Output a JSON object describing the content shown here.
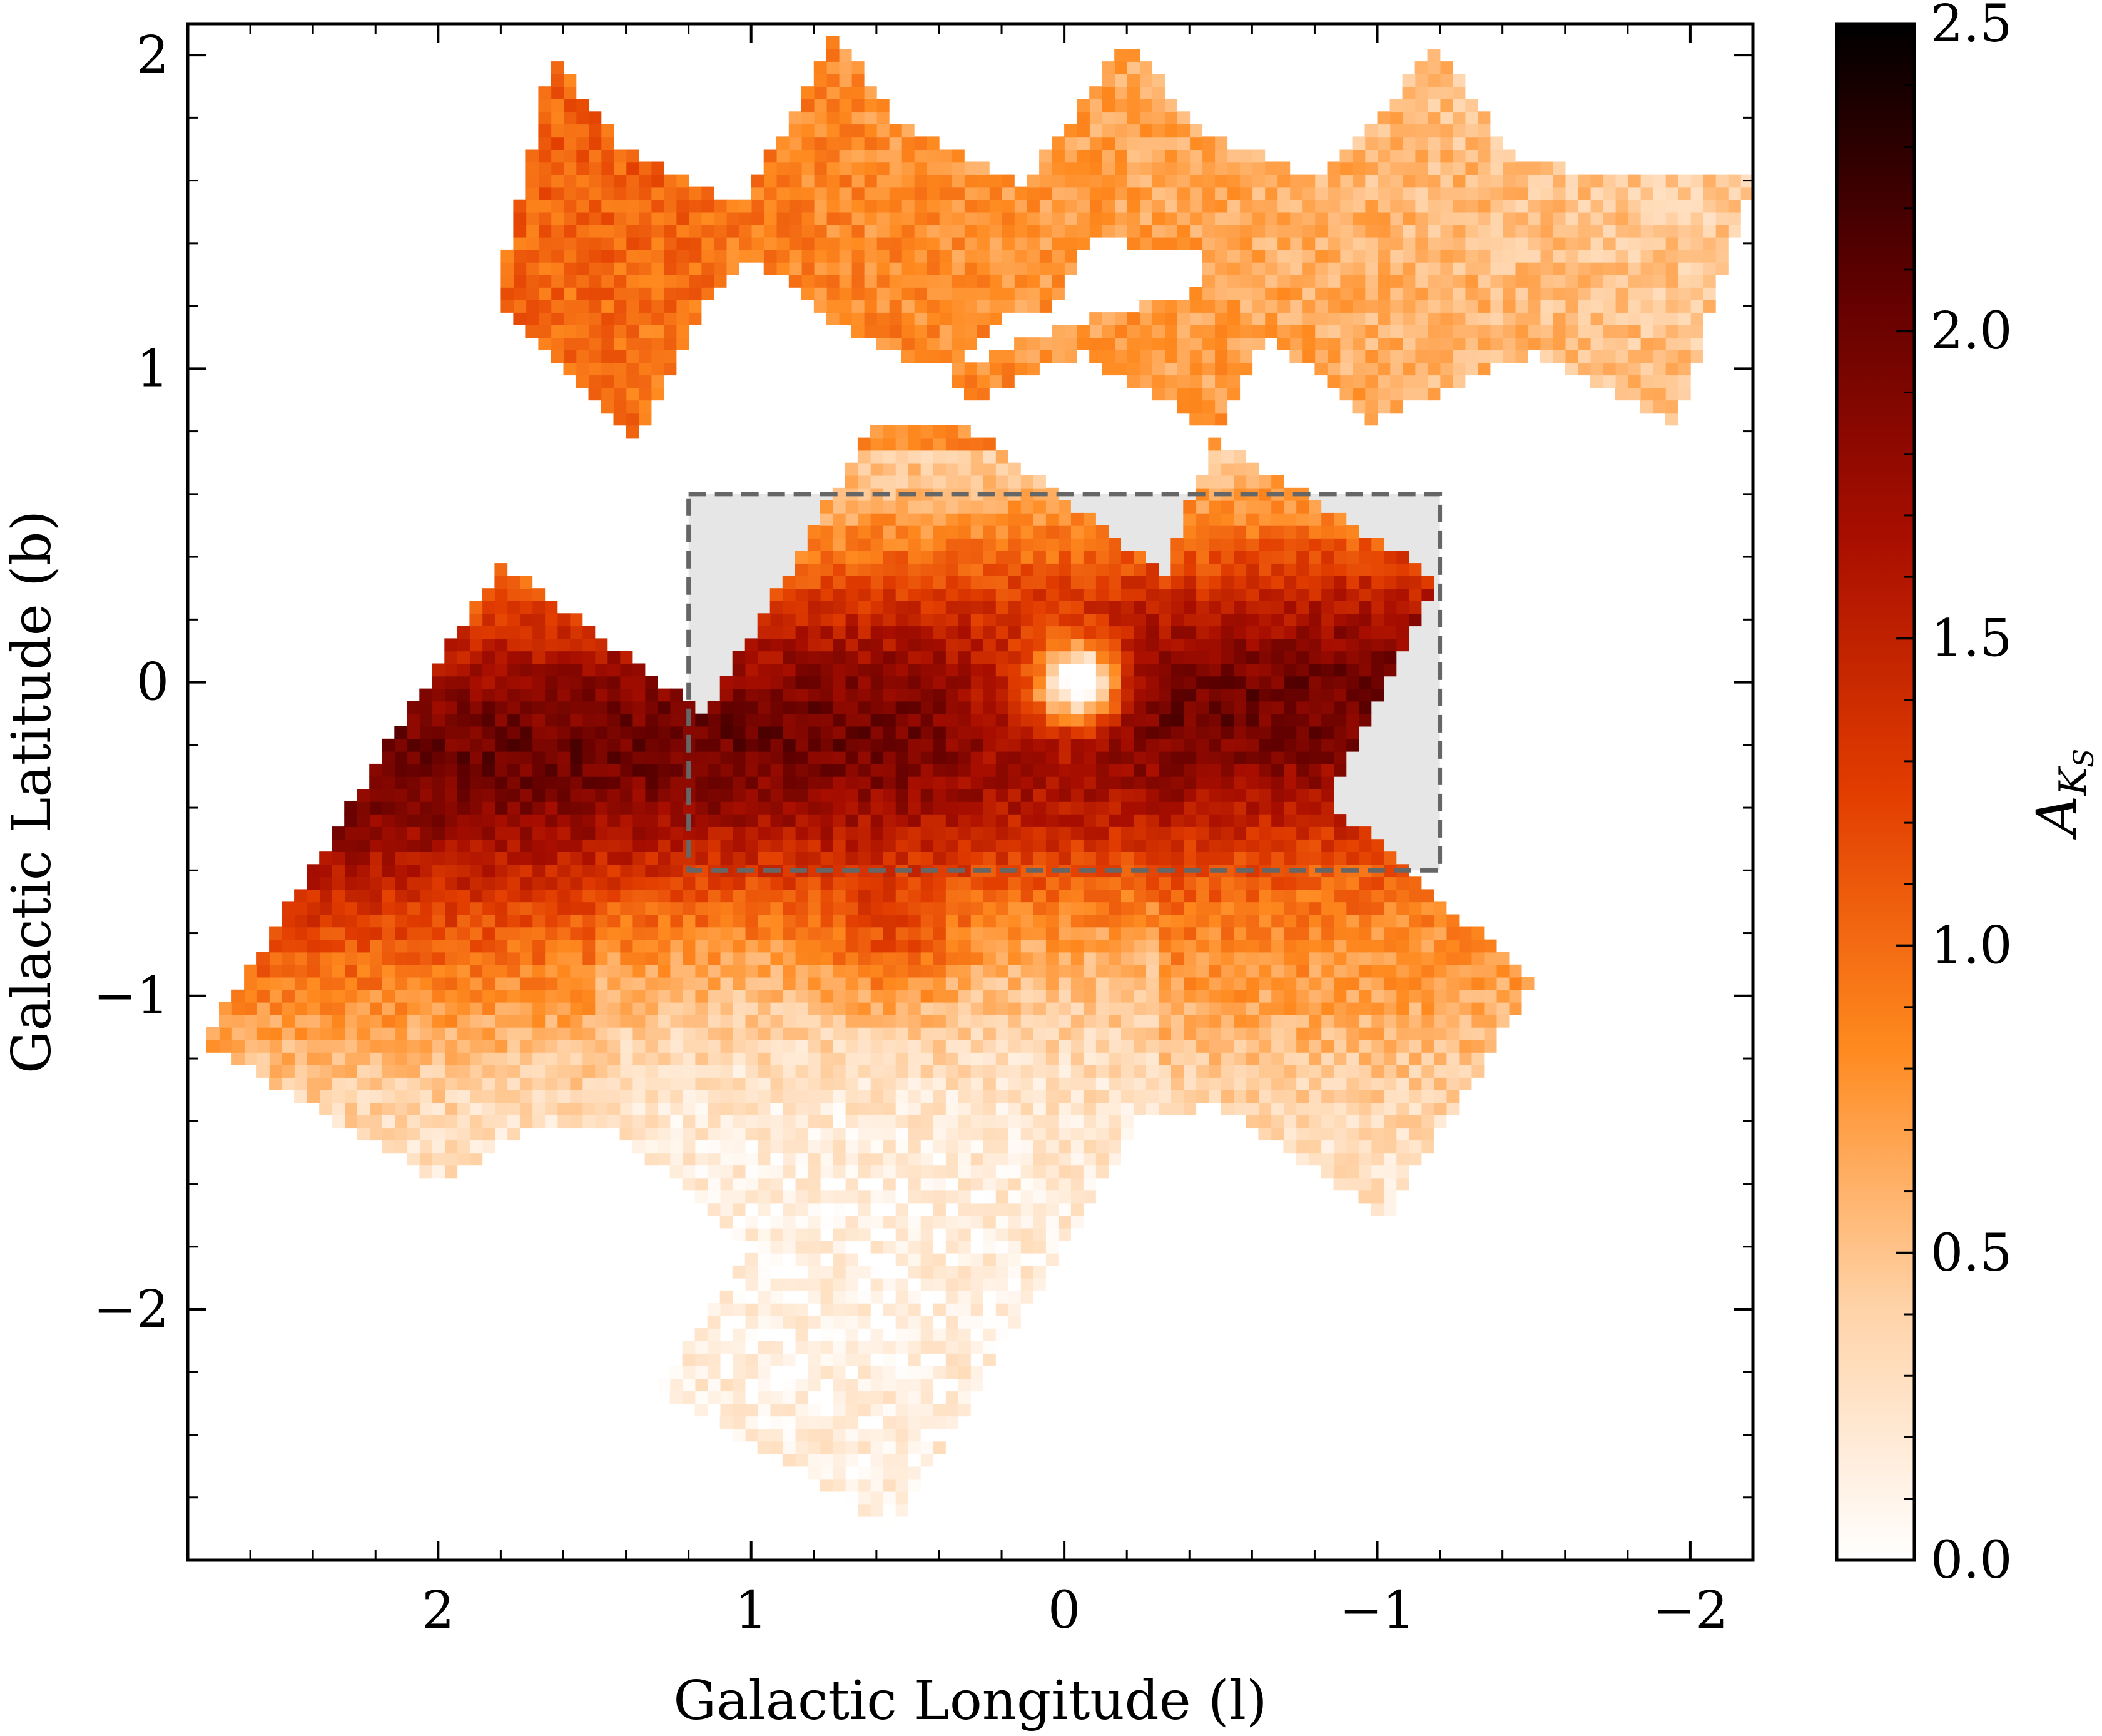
{
  "chart_data": {
    "type": "heatmap",
    "title": "",
    "xlabel": "Galactic Longitude (l)",
    "ylabel": "Galactic Latitude (b)",
    "xlim": [
      2.8,
      -2.2
    ],
    "ylim": [
      -2.8,
      2.1
    ],
    "x_ticks": [
      2,
      1,
      0,
      -1,
      -2
    ],
    "x_tick_labels": [
      "2",
      "1",
      "0",
      "−1",
      "−2"
    ],
    "y_ticks": [
      2,
      1,
      0,
      -1,
      -2
    ],
    "y_tick_labels": [
      "2",
      "1",
      "0",
      "−1",
      "−2"
    ],
    "colorbar": {
      "label": "A_KS",
      "label_display": "A",
      "label_subscript": "K",
      "label_subsubscript": "S",
      "range": [
        0.0,
        2.5
      ],
      "ticks": [
        0.0,
        0.5,
        1.0,
        1.5,
        2.0,
        2.5
      ],
      "tick_labels": [
        "0.0",
        "0.5",
        "1.0",
        "1.5",
        "2.0",
        "2.5"
      ],
      "colormap": "gist_heat_r",
      "colors": [
        "#ffffff",
        "#ffd2a6",
        "#ff8a1f",
        "#e23d00",
        "#a80e00",
        "#5e0000",
        "#000000"
      ]
    },
    "regions": [
      {
        "name": "northern tiles",
        "polygon": [
          [
            1.63,
            2.01
          ],
          [
            1.43,
            1.72
          ],
          [
            1.03,
            1.52
          ],
          [
            0.73,
            2.06
          ],
          [
            0.53,
            1.78
          ],
          [
            0.13,
            1.58
          ],
          [
            -0.2,
            2.06
          ],
          [
            -0.4,
            1.78
          ],
          [
            -0.8,
            1.6
          ],
          [
            -1.2,
            2.03
          ],
          [
            -1.45,
            1.65
          ],
          [
            -2.2,
            1.6
          ],
          [
            -1.95,
            0.82
          ],
          [
            -1.5,
            1.05
          ],
          [
            -0.97,
            0.83
          ],
          [
            -0.65,
            1.12
          ],
          [
            -0.48,
            0.8
          ],
          [
            -0.05,
            1.05
          ],
          [
            0.33,
            0.88
          ],
          [
            0.35,
            1.0
          ],
          [
            0.18,
            1.18
          ],
          [
            -0.05,
            1.15
          ],
          [
            -0.43,
            1.25
          ],
          [
            -0.43,
            1.36
          ],
          [
            -0.08,
            1.42
          ],
          [
            0.06,
            1.12
          ],
          [
            0.35,
            1.0
          ],
          [
            0.5,
            1.02
          ],
          [
            0.78,
            1.18
          ],
          [
            0.98,
            1.35
          ],
          [
            1.13,
            1.26
          ],
          [
            1.37,
            0.78
          ],
          [
            1.82,
            1.22
          ]
        ],
        "extinction_range": [
          0.2,
          1.1
        ]
      },
      {
        "name": "central tiles",
        "polygon": [
          [
            1.8,
            0.38
          ],
          [
            1.15,
            -0.1
          ],
          [
            0.62,
            0.8
          ],
          [
            0.32,
            0.82
          ],
          [
            -0.32,
            0.35
          ],
          [
            -0.48,
            0.78
          ],
          [
            -1.2,
            0.33
          ],
          [
            -0.85,
            -0.38
          ],
          [
            -1.5,
            -0.96
          ],
          [
            -1.03,
            -1.7
          ],
          [
            -0.5,
            -1.35
          ],
          [
            -0.25,
            -1.38
          ],
          [
            0.55,
            -2.7
          ],
          [
            1.3,
            -2.25
          ],
          [
            1.0,
            -1.8
          ],
          [
            1.15,
            -1.68
          ],
          [
            1.45,
            -1.4
          ],
          [
            1.7,
            -1.4
          ],
          [
            1.98,
            -1.6
          ],
          [
            2.75,
            -1.15
          ]
        ],
        "extinction_range": [
          0.0,
          2.5
        ]
      }
    ],
    "features": [
      {
        "label": "central low-extinction spot",
        "l": -0.05,
        "b": 0.0,
        "A_KS": 0.0
      },
      {
        "label": "high-extinction band",
        "b_range": [
          -0.9,
          0.4
        ],
        "A_KS_range": [
          1.4,
          2.3
        ]
      },
      {
        "label": "low-extinction southern region",
        "l_range": [
          0.2,
          1.3
        ],
        "b_range": [
          -2.7,
          -1.2
        ],
        "A_KS_range": [
          0.0,
          0.4
        ]
      }
    ],
    "highlight_box": {
      "l_range": [
        -1.2,
        1.2
      ],
      "b_range": [
        -0.6,
        0.6
      ],
      "style": "dashed",
      "color": "#666666",
      "fill": "#e6e6e6"
    }
  }
}
